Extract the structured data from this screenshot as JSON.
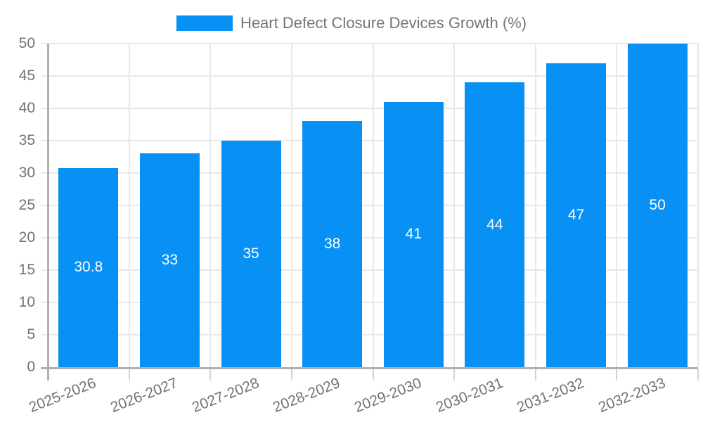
{
  "chart_data": {
    "type": "bar",
    "title": "Heart Defect Closure Devices Growth (%)",
    "categories": [
      "2025-2026",
      "2026-2027",
      "2027-2028",
      "2028-2029",
      "2029-2030",
      "2030-2031",
      "2031-2032",
      "2032-2033"
    ],
    "values": [
      30.8,
      33,
      35,
      38,
      41,
      44,
      47,
      50
    ],
    "value_labels": [
      "30.8",
      "33",
      "35",
      "38",
      "41",
      "44",
      "47",
      "50"
    ],
    "xlabel": "",
    "ylabel": "",
    "ylim": [
      0,
      50
    ],
    "ytick_step": 5,
    "yticks": [
      0,
      5,
      10,
      15,
      20,
      25,
      30,
      35,
      40,
      45,
      50
    ],
    "grid": true,
    "legend_position": "top-center",
    "colors": {
      "bar": "#0891f5",
      "value_label": "#ffffff",
      "axis_text": "#737373",
      "legend_text": "#757575",
      "gridline": "#e8e8e8",
      "tick": "#d2d2d2",
      "axis_line": "#b0b0b0",
      "background": "#ffffff"
    }
  }
}
